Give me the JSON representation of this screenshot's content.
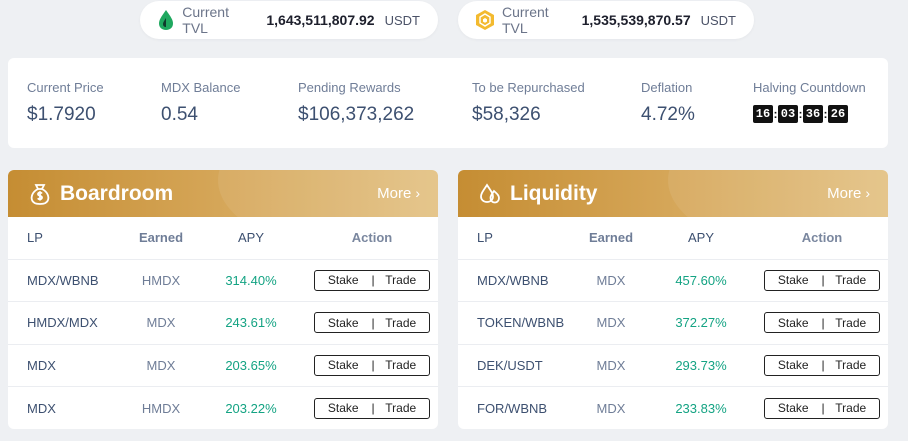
{
  "tvl": [
    {
      "label": "Current TVL",
      "value": "1,643,511,807.92",
      "unit": "USDT",
      "icon": "heco-drop-icon",
      "color": "#1fa85f"
    },
    {
      "label": "Current TVL",
      "value": "1,535,539,870.57",
      "unit": "USDT",
      "icon": "bsc-cube-icon",
      "color": "#f3ba2f"
    }
  ],
  "stats": {
    "current_price": {
      "label": "Current Price",
      "value": "$1.7920"
    },
    "mdx_balance": {
      "label": "MDX Balance",
      "value": "0.54"
    },
    "pending_rewards": {
      "label": "Pending Rewards",
      "value": "$106,373,262"
    },
    "to_be_repurchased": {
      "label": "To be Repurchased",
      "value": "$58,326"
    },
    "deflation": {
      "label": "Deflation",
      "value": "4.72%"
    },
    "halving": {
      "label": "Halving Countdown",
      "d": "16",
      "h": "03",
      "m": "36",
      "s": "26"
    }
  },
  "boardroom": {
    "title": "Boardroom",
    "more": "More",
    "columns": {
      "lp": "LP",
      "earned": "Earned",
      "apy": "APY",
      "action": "Action"
    },
    "rows": [
      {
        "lp": "MDX/WBNB",
        "earned": "HMDX",
        "apy": "314.40%",
        "stake": "Stake",
        "sep": "|",
        "trade": "Trade"
      },
      {
        "lp": "HMDX/MDX",
        "earned": "MDX",
        "apy": "243.61%",
        "stake": "Stake",
        "sep": "|",
        "trade": "Trade"
      },
      {
        "lp": "MDX",
        "earned": "MDX",
        "apy": "203.65%",
        "stake": "Stake",
        "sep": "|",
        "trade": "Trade"
      },
      {
        "lp": "MDX",
        "earned": "HMDX",
        "apy": "203.22%",
        "stake": "Stake",
        "sep": "|",
        "trade": "Trade"
      }
    ]
  },
  "liquidity": {
    "title": "Liquidity",
    "more": "More",
    "columns": {
      "lp": "LP",
      "earned": "Earned",
      "apy": "APY",
      "action": "Action"
    },
    "rows": [
      {
        "lp": "MDX/WBNB",
        "earned": "MDX",
        "apy": "457.60%",
        "stake": "Stake",
        "sep": "|",
        "trade": "Trade"
      },
      {
        "lp": "TOKEN/WBNB",
        "earned": "MDX",
        "apy": "372.27%",
        "stake": "Stake",
        "sep": "|",
        "trade": "Trade"
      },
      {
        "lp": "DEK/USDT",
        "earned": "MDX",
        "apy": "293.73%",
        "stake": "Stake",
        "sep": "|",
        "trade": "Trade"
      },
      {
        "lp": "FOR/WBNB",
        "earned": "MDX",
        "apy": "233.83%",
        "stake": "Stake",
        "sep": "|",
        "trade": "Trade"
      }
    ]
  },
  "colors": {
    "accent_gold": "#c58d33",
    "apy_green": "#14a383",
    "text": "#3d5070"
  }
}
